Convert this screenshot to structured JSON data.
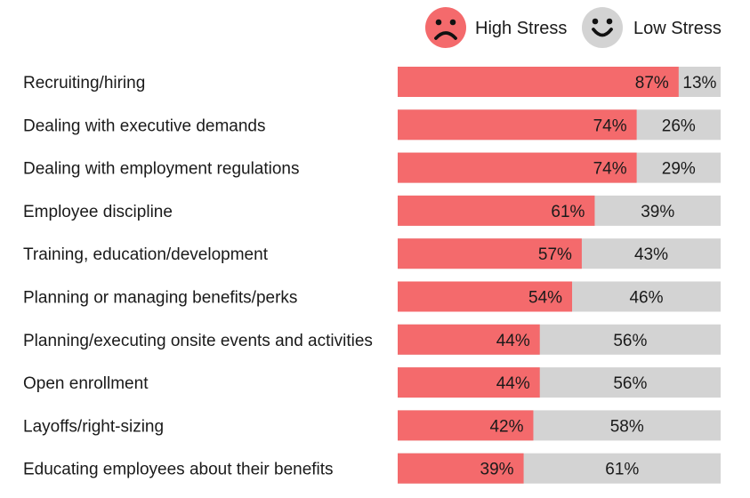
{
  "chart_data": {
    "type": "bar",
    "orientation": "horizontal",
    "stacked": true,
    "unit": "%",
    "xlim": [
      0,
      100
    ],
    "grid": false,
    "legend_position": "top-right",
    "categories": [
      "Recruiting/hiring",
      "Dealing with executive demands",
      "Dealing with employment regulations",
      "Employee discipline",
      "Training, education/development",
      "Planning or managing benefits/perks",
      "Planning/executing onsite events and activities",
      "Open enrollment",
      "Layoffs/right-sizing",
      "Educating employees about their benefits"
    ],
    "series": [
      {
        "name": "High Stress",
        "color": "#f46a6c",
        "icon": "sad-face-icon",
        "values": [
          87,
          74,
          74,
          61,
          57,
          54,
          44,
          44,
          42,
          39
        ]
      },
      {
        "name": "Low Stress",
        "color": "#d3d3d3",
        "icon": "happy-face-icon",
        "values": [
          13,
          26,
          29,
          39,
          43,
          46,
          56,
          56,
          58,
          61
        ]
      }
    ],
    "title": "",
    "xlabel": "",
    "ylabel": ""
  }
}
